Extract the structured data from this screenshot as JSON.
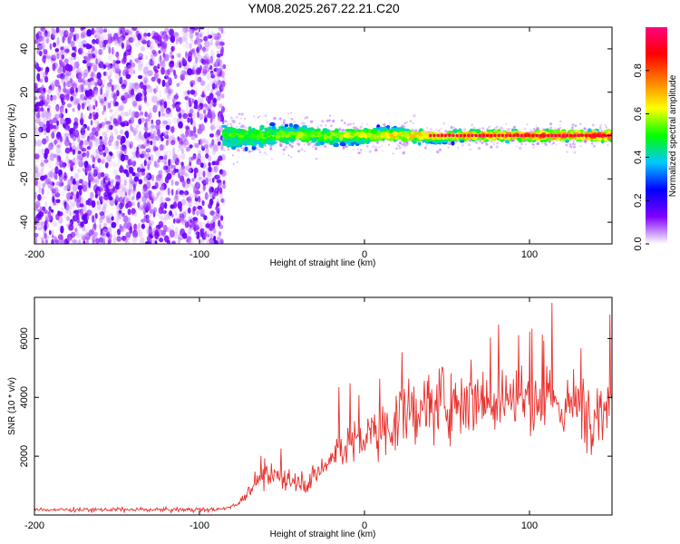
{
  "title": "YM08.2025.267.22.21.C20",
  "chart_data": [
    {
      "type": "heatmap",
      "title": "YM08.2025.267.22.21.C20",
      "xlabel": "Height of straight line (km)",
      "ylabel": "Frequency (Hz)",
      "xlim": [
        -200,
        150
      ],
      "ylim": [
        -50,
        50
      ],
      "x_ticks": [
        -200,
        -100,
        0,
        100
      ],
      "x_tick_labels": [
        "-200",
        "-100",
        "0",
        "100"
      ],
      "y_ticks": [
        -40,
        -20,
        0,
        20,
        40
      ],
      "y_tick_labels": [
        "-40",
        "-20",
        "0",
        "20",
        "40"
      ],
      "colorbar": {
        "label": "Normalized spectral amplitude",
        "range": [
          0,
          1
        ],
        "ticks": [
          0,
          0.2,
          0.4,
          0.6,
          0.8
        ],
        "tick_labels": [
          "0.0",
          "0.2",
          "0.4",
          "0.6",
          "0.8"
        ],
        "colormap": [
          "#ffffff",
          "#8000ff",
          "#0000ff",
          "#00c8ff",
          "#00ff00",
          "#ffff00",
          "#ff8000",
          "#ff0000",
          "#ff0080"
        ]
      },
      "regions": [
        {
          "name": "noise",
          "x_range": [
            -200,
            -85
          ],
          "freq_range": [
            -50,
            50
          ],
          "amplitude_range": [
            0,
            0.15
          ]
        },
        {
          "name": "signal-band",
          "x_range": [
            -85,
            150
          ],
          "center_freq": 0,
          "amplitude_range": [
            0.1,
            1.0
          ],
          "band_halfwidth_hz": [
            [
              -85,
              7
            ],
            [
              -40,
              5
            ],
            [
              0,
              4
            ],
            [
              60,
              3
            ],
            [
              150,
              3
            ]
          ]
        }
      ]
    },
    {
      "type": "line",
      "xlabel": "Height of straight line (km)",
      "ylabel": "SNR (10 * v/v)",
      "xlim": [
        -200,
        150
      ],
      "ylim": [
        0,
        7400
      ],
      "x_ticks": [
        -200,
        -100,
        0,
        100
      ],
      "x_tick_labels": [
        "-200",
        "-100",
        "0",
        "100"
      ],
      "y_ticks": [
        2000,
        4000,
        6000
      ],
      "y_tick_labels": [
        "2000",
        "4000",
        "6000"
      ],
      "color": "#e8302c",
      "series": [
        {
          "name": "SNR",
          "x": [
            -200,
            -150,
            -100,
            -85,
            -75,
            -65,
            -50,
            -35,
            -25,
            -15,
            0,
            15,
            30,
            45,
            60,
            75,
            90,
            100,
            110,
            125,
            140,
            150
          ],
          "values": [
            180,
            180,
            180,
            200,
            450,
            1200,
            1300,
            1100,
            1600,
            2300,
            2600,
            3000,
            3600,
            3800,
            4000,
            4000,
            4000,
            3900,
            3800,
            3700,
            3600,
            3700
          ]
        }
      ]
    }
  ],
  "colors": {
    "accent": "#e8302c"
  }
}
